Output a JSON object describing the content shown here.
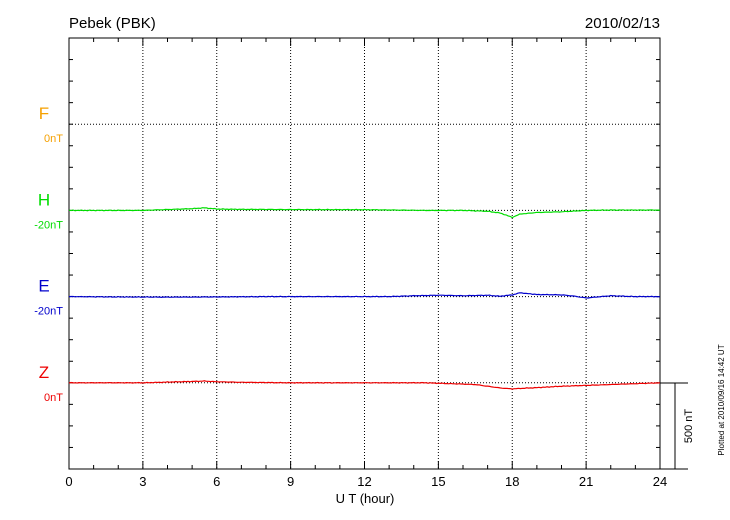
{
  "chart_data": {
    "type": "line",
    "title_left": "Pebek (PBK)",
    "title_right": "2010/02/13",
    "xlabel": "U T (hour)",
    "xlim": [
      0,
      24
    ],
    "xticks": [
      "0",
      "3",
      "6",
      "9",
      "12",
      "15",
      "18",
      "21",
      "24"
    ],
    "grid": true,
    "plotted_note": "Plotted at 2010/09/16 14:42 UT",
    "scale_label": "500 nT",
    "series": [
      {
        "name": "F",
        "offset_label": "0nT",
        "color": "#f5a000",
        "level": 1,
        "x": [],
        "values": []
      },
      {
        "name": "H",
        "offset_label": "-20nT",
        "color": "#00dd00",
        "level": 2,
        "x": [
          0,
          1,
          2,
          3,
          4,
          5,
          5.5,
          6,
          7,
          9,
          12,
          14.5,
          16,
          17,
          17.5,
          18,
          18.3,
          19,
          20,
          21,
          22,
          23,
          24
        ],
        "values": [
          0,
          0,
          0,
          0,
          5,
          10,
          15,
          8,
          6,
          5,
          4,
          0,
          0,
          -5,
          -15,
          -40,
          -22,
          -12,
          -8,
          0,
          2,
          2,
          2
        ]
      },
      {
        "name": "E",
        "offset_label": "-20nT",
        "color": "#0000cc",
        "level": 3,
        "x": [
          0,
          2,
          4,
          6,
          8,
          10,
          13,
          14,
          15,
          16,
          17,
          17.5,
          18,
          18.3,
          19,
          20,
          20.5,
          21,
          22,
          23,
          24
        ],
        "values": [
          0,
          -2,
          -3,
          -2,
          0,
          0,
          0,
          5,
          8,
          5,
          8,
          2,
          10,
          22,
          12,
          10,
          3,
          -8,
          5,
          0,
          0
        ]
      },
      {
        "name": "Z",
        "offset_label": "0nT",
        "color": "#ee0000",
        "level": 4,
        "x": [
          0,
          1,
          3,
          5,
          5.5,
          6,
          7,
          9,
          12,
          14.5,
          15.5,
          16.5,
          17.5,
          18,
          19,
          20,
          21,
          22,
          23,
          24
        ],
        "values": [
          0,
          0,
          0,
          8,
          10,
          6,
          3,
          0,
          0,
          0,
          -5,
          -10,
          -30,
          -35,
          -28,
          -20,
          -15,
          -10,
          -5,
          0
        ]
      }
    ]
  }
}
